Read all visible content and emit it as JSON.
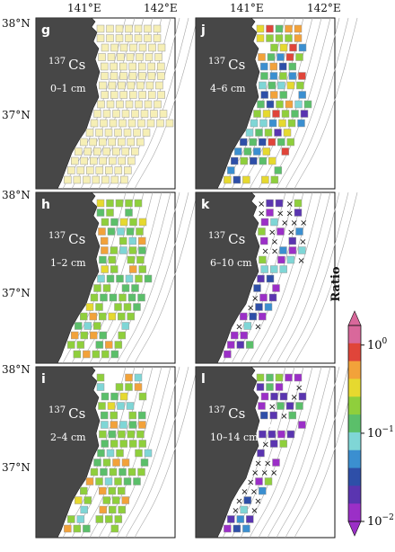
{
  "lon_labels": [
    "141°E",
    "142°E"
  ],
  "lat_labels": {
    "top": "38°N",
    "mid": "37°N"
  },
  "nuclide": {
    "mass": "137",
    "element": "Cs"
  },
  "panels": [
    {
      "letter": "g",
      "depth": "0–1 cm"
    },
    {
      "letter": "j",
      "depth": "4–6 cm"
    },
    {
      "letter": "h",
      "depth": "1–2 cm"
    },
    {
      "letter": "k",
      "depth": "6–10 cm"
    },
    {
      "letter": "i",
      "depth": "2–4 cm"
    },
    {
      "letter": "l",
      "depth": "10–14 cm"
    }
  ],
  "colorbar": {
    "title": "Ratio",
    "ticks": [
      {
        "base": "10",
        "exp": "0"
      },
      {
        "base": "10",
        "exp": "−1"
      },
      {
        "base": "10",
        "exp": "−2"
      }
    ],
    "colors": [
      "#9b2fc7",
      "#5a35b0",
      "#2e4fa8",
      "#3b8fd0",
      "#7fd6d6",
      "#5bbf6a",
      "#8fcf3c",
      "#e6d92f",
      "#f2a23a",
      "#e0453a",
      "#d9689b"
    ]
  },
  "colors": {
    "land": "#474747",
    "reference_sample": "#f6efb6",
    "no_data_marker": "#111111"
  }
}
